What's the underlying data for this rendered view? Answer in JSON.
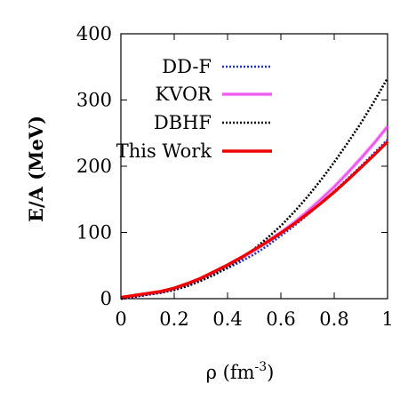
{
  "chart_data": {
    "type": "line",
    "xlabel": "ρ (fm",
    "xlabel_sup": "-3",
    "xlabel_end": ")",
    "ylabel": "E/A (MeV)",
    "xlim": [
      0,
      1
    ],
    "ylim": [
      0,
      400
    ],
    "xticks": [
      0,
      0.2,
      0.4,
      0.6,
      0.8,
      1
    ],
    "xtick_labels": [
      "0",
      "0.2",
      "0.4",
      "0.6",
      "0.8",
      "1"
    ],
    "yticks": [
      0,
      100,
      200,
      300,
      400
    ],
    "ytick_labels": [
      "0",
      "100",
      "200",
      "300",
      "400"
    ],
    "grid": false,
    "legend_position": "top-left",
    "series": [
      {
        "name": "DD-F",
        "color": "#2233cc",
        "style": "dotted",
        "x": [
          0,
          0.05,
          0.1,
          0.15,
          0.2,
          0.25,
          0.3,
          0.35,
          0.4,
          0.45,
          0.5,
          0.55,
          0.6,
          0.65,
          0.7,
          0.75,
          0.8,
          0.85,
          0.9,
          0.95,
          1.0
        ],
        "y": [
          0,
          3,
          6,
          9,
          14,
          20,
          28,
          37,
          46,
          56,
          67,
          80,
          95,
          110,
          127,
          144,
          162,
          181,
          200,
          220,
          240
        ]
      },
      {
        "name": "KVOR",
        "color": "#ee44ee",
        "style": "solid",
        "x": [
          0,
          0.05,
          0.1,
          0.15,
          0.2,
          0.25,
          0.3,
          0.35,
          0.4,
          0.45,
          0.5,
          0.55,
          0.6,
          0.65,
          0.7,
          0.75,
          0.8,
          0.85,
          0.9,
          0.95,
          1.0
        ],
        "y": [
          0,
          4,
          7,
          10,
          15,
          22,
          30,
          40,
          50,
          61,
          73,
          86,
          100,
          115,
          132,
          150,
          169,
          190,
          212,
          235,
          260
        ]
      },
      {
        "name": "DBHF",
        "color": "#000000",
        "style": "dotted",
        "x": [
          0,
          0.05,
          0.1,
          0.15,
          0.2,
          0.25,
          0.3,
          0.35,
          0.4,
          0.45,
          0.5,
          0.55,
          0.6,
          0.65,
          0.7,
          0.75,
          0.8,
          0.85,
          0.9,
          0.95,
          1.0
        ],
        "y": [
          0,
          3,
          6,
          9,
          13,
          19,
          27,
          36,
          47,
          60,
          75,
          92,
          110,
          131,
          154,
          179,
          206,
          235,
          265,
          298,
          333
        ]
      },
      {
        "name": "This Work",
        "color": "#ee0000",
        "style": "solid",
        "x": [
          0,
          0.05,
          0.1,
          0.15,
          0.2,
          0.25,
          0.3,
          0.35,
          0.4,
          0.45,
          0.5,
          0.55,
          0.6,
          0.65,
          0.7,
          0.75,
          0.8,
          0.85,
          0.9,
          0.95,
          1.0
        ],
        "y": [
          2,
          5,
          8,
          11,
          16,
          23,
          31,
          41,
          51,
          62,
          74,
          86,
          99,
          113,
          128,
          144,
          161,
          179,
          198,
          217,
          237
        ]
      }
    ]
  }
}
